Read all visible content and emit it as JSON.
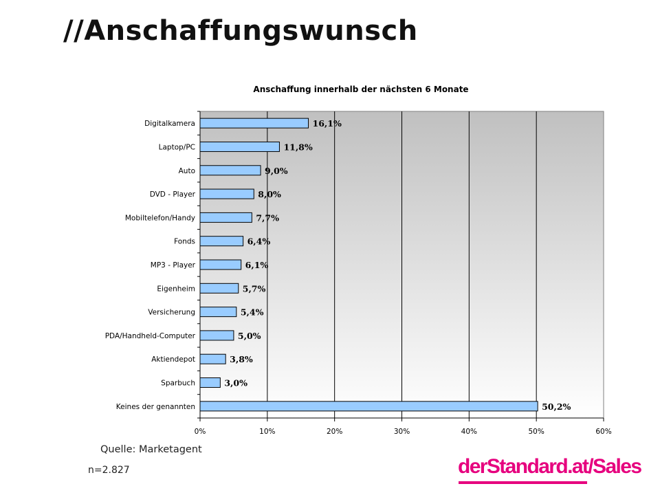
{
  "page": {
    "title": "//Anschaffungswunsch",
    "source": "Quelle: Marketagent",
    "sample": "n=2.827",
    "brand": "derStandard.at/Sales"
  },
  "colors": {
    "bar_fill": "#99ccff",
    "bar_stroke": "#000000",
    "plot_gradient_top": "#c0c0c0",
    "plot_gradient_bottom": "#ffffff",
    "brand": "#e6007e"
  },
  "chart_data": {
    "type": "bar",
    "orientation": "horizontal",
    "title": "Anschaffung innerhalb der nächsten 6 Monate",
    "categories": [
      "Digitalkamera",
      "Laptop/PC",
      "Auto",
      "DVD - Player",
      "Mobiltelefon/Handy",
      "Fonds",
      "MP3 - Player",
      "Eigenheim",
      "Versicherung",
      "PDA/Handheld-Computer",
      "Aktiendepot",
      "Sparbuch",
      "Keines der genannten"
    ],
    "values": [
      16.1,
      11.8,
      9.0,
      8.0,
      7.7,
      6.4,
      6.1,
      5.7,
      5.4,
      5.0,
      3.8,
      3.0,
      50.2
    ],
    "value_labels": [
      "16,1%",
      "11,8%",
      "9,0%",
      "8,0%",
      "7,7%",
      "6,4%",
      "6,1%",
      "5,7%",
      "5,4%",
      "5,0%",
      "3,8%",
      "3,0%",
      "50,2%"
    ],
    "xlim": [
      0,
      60
    ],
    "ticks": [
      0,
      10,
      20,
      30,
      40,
      50,
      60
    ],
    "tick_labels": [
      "0%",
      "10%",
      "20%",
      "30%",
      "40%",
      "50%",
      "60%"
    ],
    "grid": "vertical",
    "legend": "none"
  }
}
